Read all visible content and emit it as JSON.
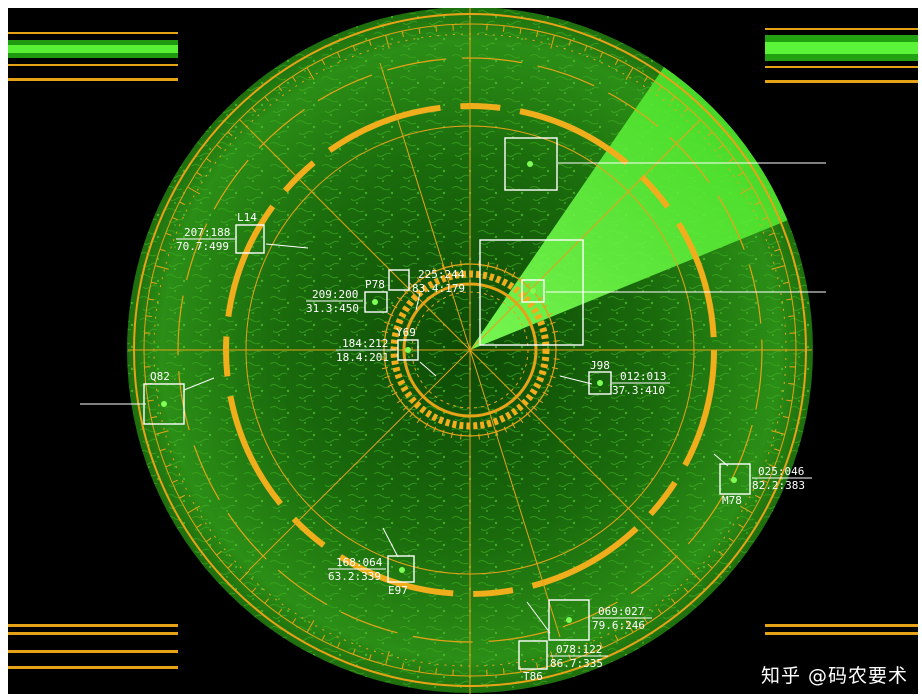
{
  "watermark": "知乎 @码农要术",
  "colors": {
    "background": "#000000",
    "radar_green": "#1f7a12",
    "ring_amber": "#e6a318",
    "sweep": "#4cff2e",
    "label": "#ffffff"
  },
  "targets": [
    {
      "id": "L14",
      "line1": "207:188",
      "line2": "70.7:499"
    },
    {
      "id": "P78",
      "line1": "209:200",
      "line2": "31.3:450"
    },
    {
      "id": "",
      "line1": "225:244",
      "line2": "83.4:179"
    },
    {
      "id": "Y69",
      "line1": "184:212",
      "line2": "18.4:201"
    },
    {
      "id": "J98",
      "line1": "012:013",
      "line2": "37.3:410"
    },
    {
      "id": "Q82",
      "line1": "",
      "line2": ""
    },
    {
      "id": "M78",
      "line1": "025:046",
      "line2": "82.2:383"
    },
    {
      "id": "E97",
      "line1": "168:064",
      "line2": "63.2:339"
    },
    {
      "id": "",
      "line1": "069:027",
      "line2": "79.6:246"
    },
    {
      "id": "T86",
      "line1": "078:122",
      "line2": "86.7:335"
    }
  ]
}
